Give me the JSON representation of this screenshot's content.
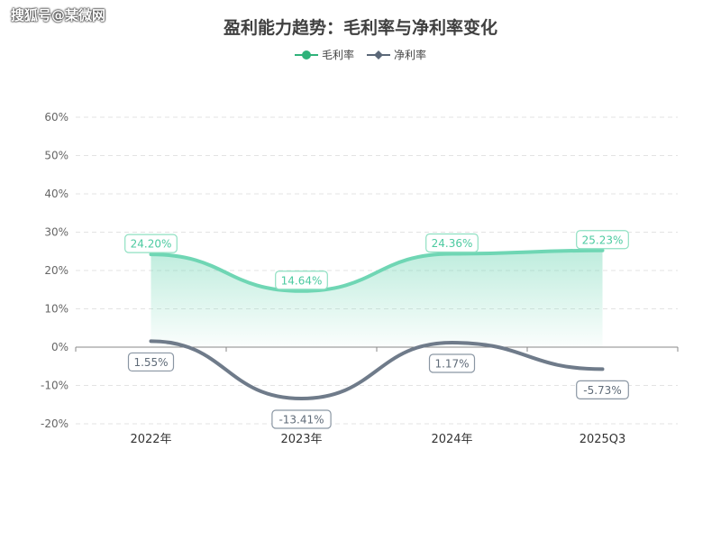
{
  "watermark": "搜狐号@某微网",
  "chart_data": {
    "type": "line",
    "title": "盈利能力趋势：毛利率与净利率变化",
    "categories": [
      "2022年",
      "2023年",
      "2024年",
      "2025Q3"
    ],
    "ylim": [
      -20,
      60
    ],
    "yticks": [
      -20,
      -10,
      0,
      10,
      20,
      30,
      40,
      50,
      60
    ],
    "ytick_labels": [
      "-20%",
      "-10%",
      "0%",
      "10%",
      "20%",
      "30%",
      "40%",
      "50%",
      "60%"
    ],
    "grid": true,
    "legend_position": "top-center",
    "series": [
      {
        "name": "毛利率",
        "values": [
          24.2,
          14.64,
          24.36,
          25.23
        ],
        "labels": [
          "24.20%",
          "14.64%",
          "24.36%",
          "25.23%"
        ],
        "color": "#6fd6b4",
        "marker": "circle",
        "area": true
      },
      {
        "name": "净利率",
        "values": [
          1.55,
          -13.41,
          1.17,
          -5.73
        ],
        "labels": [
          "1.55%",
          "-13.41%",
          "1.17%",
          "-5.73%"
        ],
        "color": "#6f7b8a",
        "marker": "diamond",
        "area": false
      }
    ]
  }
}
